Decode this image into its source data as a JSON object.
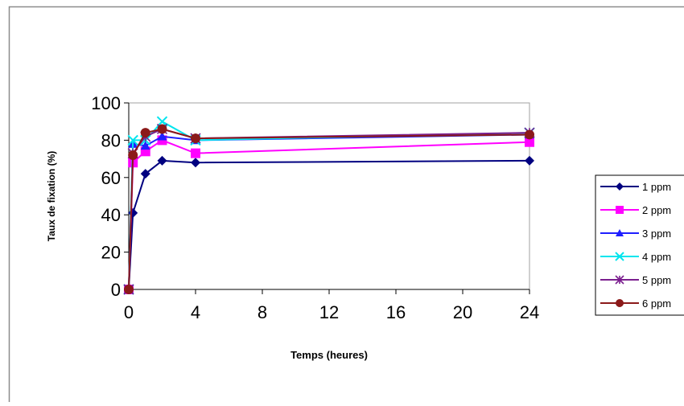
{
  "chart_data": {
    "type": "line",
    "title": "",
    "xlabel": "Temps (heures)",
    "ylabel": "Taux de fixation (%)",
    "xlim": [
      0,
      24
    ],
    "ylim": [
      0,
      100
    ],
    "x_ticks": [
      0,
      4,
      8,
      12,
      16,
      20,
      24
    ],
    "y_ticks": [
      0,
      20,
      40,
      60,
      80,
      100
    ],
    "grid": false,
    "legend_position": "right",
    "series": [
      {
        "name": "1 ppm",
        "color": "#000080",
        "marker": "diamond",
        "x": [
          0,
          0.25,
          1,
          2,
          4,
          24
        ],
        "y": [
          0,
          41,
          62,
          69,
          68,
          69
        ]
      },
      {
        "name": "2 ppm",
        "color": "#ff00ff",
        "marker": "square",
        "x": [
          0,
          0.25,
          1,
          2,
          4,
          24
        ],
        "y": [
          0,
          68,
          74,
          80,
          73,
          79
        ]
      },
      {
        "name": "3 ppm",
        "color": "#1f1fff",
        "marker": "triangle",
        "x": [
          0,
          0.25,
          1,
          2,
          4,
          24
        ],
        "y": [
          0,
          78,
          77,
          82,
          80,
          83
        ]
      },
      {
        "name": "4 ppm",
        "color": "#00e5ee",
        "marker": "x",
        "x": [
          0,
          0.25,
          1,
          2,
          4,
          24
        ],
        "y": [
          0,
          80,
          80,
          90,
          80,
          84
        ]
      },
      {
        "name": "5 ppm",
        "color": "#7b1f8f",
        "marker": "star",
        "x": [
          0,
          0.25,
          1,
          2,
          4,
          24
        ],
        "y": [
          0,
          73,
          82,
          86,
          81,
          84
        ]
      },
      {
        "name": "6 ppm",
        "color": "#8b1a1a",
        "marker": "circle",
        "x": [
          0,
          0.25,
          1,
          2,
          4,
          24
        ],
        "y": [
          0,
          72,
          84,
          86,
          81,
          83
        ]
      }
    ]
  }
}
